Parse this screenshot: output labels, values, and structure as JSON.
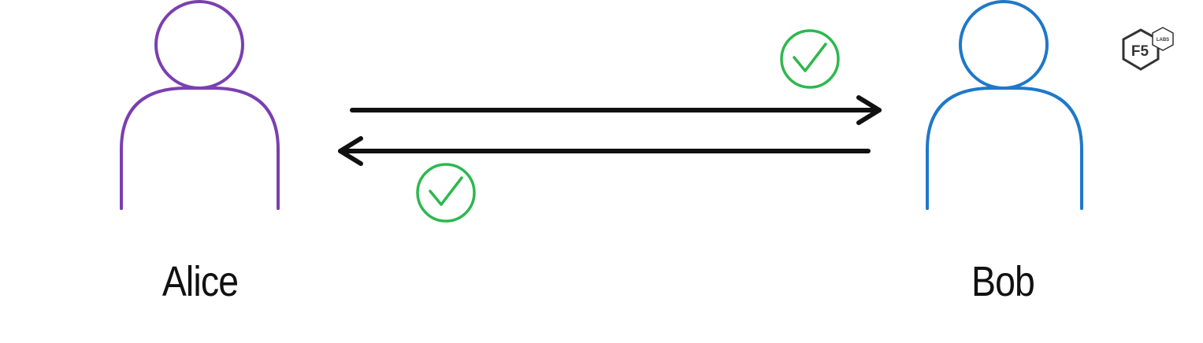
{
  "participants": {
    "alice": {
      "name": "Alice",
      "color": "#7B3FB0"
    },
    "bob": {
      "name": "Bob",
      "color": "#1F78C8"
    }
  },
  "arrows": {
    "color": "#111111",
    "forward": {
      "from": "Alice",
      "to": "Bob",
      "status": "verified"
    },
    "backward": {
      "from": "Bob",
      "to": "Alice",
      "status": "verified"
    }
  },
  "check_icon": {
    "name": "check-circle-icon",
    "color": "#2DB84E"
  },
  "logo": {
    "mark": "F5",
    "tag": "LABS",
    "color": "#333333"
  }
}
